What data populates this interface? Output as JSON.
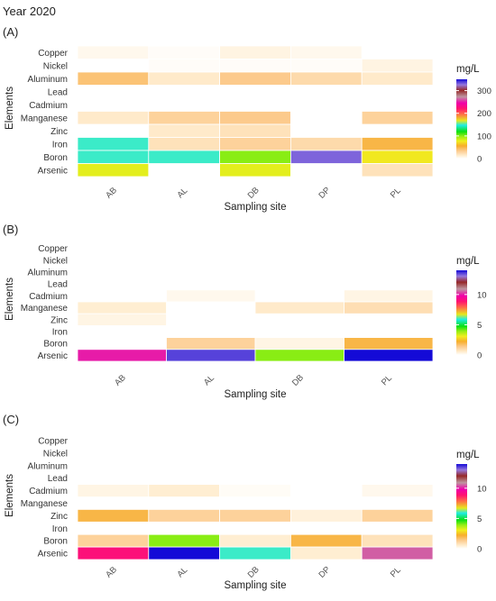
{
  "figure_title": "Year 2020",
  "chart_data": [
    {
      "type": "heatmap",
      "panel_label": "(A)",
      "xlabel": "Sampling site",
      "ylabel": "Elements",
      "x": [
        "AB",
        "AL",
        "DB",
        "DP",
        "PL"
      ],
      "y": [
        "Copper",
        "Nickel",
        "Aluminum",
        "Lead",
        "Cadmium",
        "Manganese",
        "Zinc",
        "Iron",
        "Boron",
        "Arsenic"
      ],
      "values": [
        [
          5,
          2,
          8,
          5,
          null
        ],
        [
          null,
          2,
          2,
          2,
          8
        ],
        [
          40,
          15,
          35,
          25,
          15
        ],
        [
          null,
          null,
          null,
          null,
          null
        ],
        [
          null,
          null,
          null,
          null,
          null
        ],
        [
          15,
          30,
          35,
          null,
          30
        ],
        [
          null,
          15,
          20,
          null,
          null
        ],
        [
          150,
          20,
          30,
          25,
          50
        ],
        [
          150,
          150,
          100,
          330,
          75
        ],
        [
          80,
          null,
          80,
          null,
          20
        ]
      ],
      "colorbar": {
        "label": "mg/L",
        "min": 0,
        "max": 350,
        "ticks": [
          0,
          100,
          200,
          300
        ]
      }
    },
    {
      "type": "heatmap",
      "panel_label": "(B)",
      "xlabel": "Sampling site",
      "ylabel": "Elements",
      "x": [
        "AB",
        "AL",
        "DB",
        "PL"
      ],
      "y": [
        "Copper",
        "Nickel",
        "Aluminum",
        "Lead",
        "Cadmium",
        "Manganese",
        "Zinc",
        "Iron",
        "Boron",
        "Arsenic"
      ],
      "values": [
        [
          null,
          null,
          null,
          null
        ],
        [
          null,
          null,
          null,
          null
        ],
        [
          null,
          null,
          null,
          null
        ],
        [
          null,
          null,
          null,
          null
        ],
        [
          null,
          0.2,
          null,
          0.3
        ],
        [
          0.5,
          null,
          0.6,
          0.9
        ],
        [
          0.3,
          null,
          null,
          null
        ],
        [
          null,
          null,
          null,
          null
        ],
        [
          null,
          1.2,
          0.3,
          2.0
        ],
        [
          10.0,
          13.5,
          4.0,
          14.5
        ]
      ],
      "colorbar": {
        "label": "mg/L",
        "min": 0,
        "max": 14,
        "ticks": [
          0,
          5,
          10
        ]
      }
    },
    {
      "type": "heatmap",
      "panel_label": "(C)",
      "xlabel": "Sampling site",
      "ylabel": "Elements",
      "x": [
        "AB",
        "AL",
        "DB",
        "DP",
        "PL"
      ],
      "y": [
        "Copper",
        "Nickel",
        "Aluminum",
        "Lead",
        "Cadmium",
        "Manganese",
        "Zinc",
        "Iron",
        "Boron",
        "Arsenic"
      ],
      "values": [
        [
          null,
          null,
          null,
          null,
          null
        ],
        [
          null,
          null,
          null,
          null,
          null
        ],
        [
          null,
          null,
          null,
          null,
          null
        ],
        [
          null,
          null,
          null,
          null,
          null
        ],
        [
          0.3,
          0.5,
          0.1,
          null,
          0.2
        ],
        [
          null,
          null,
          null,
          null,
          null
        ],
        [
          2.0,
          1.2,
          1.2,
          0.4,
          1.2
        ],
        [
          null,
          null,
          null,
          null,
          null
        ],
        [
          1.2,
          4.0,
          0.5,
          2.0,
          0.8
        ],
        [
          9.0,
          14.5,
          6.0,
          0.5,
          10.5
        ]
      ],
      "colorbar": {
        "label": "mg/L",
        "min": 0,
        "max": 14,
        "ticks": [
          0,
          5,
          10
        ]
      }
    }
  ]
}
